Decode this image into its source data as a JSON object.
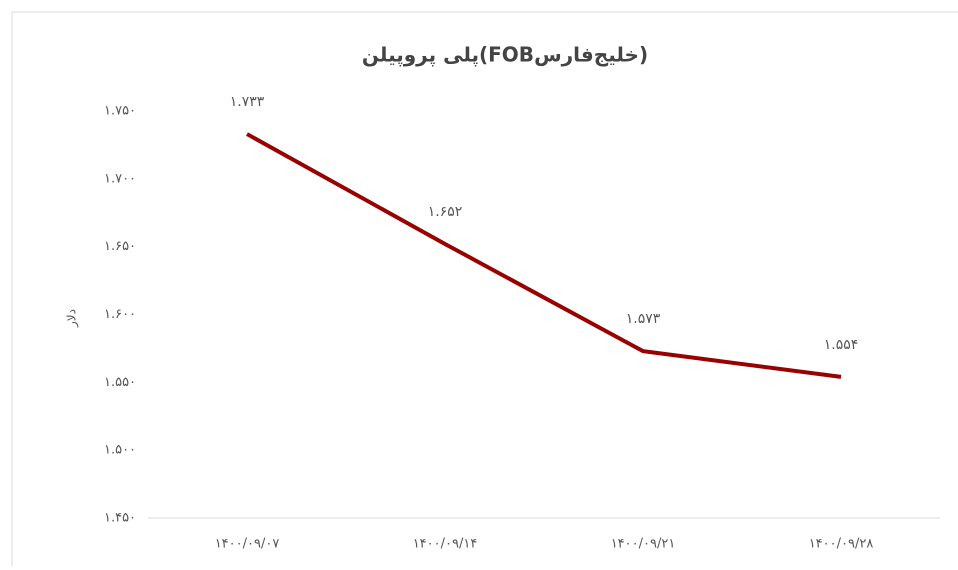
{
  "chart_data": {
    "type": "line",
    "title": "پلی پروپیلن(FOBخلیج‌فارس)",
    "y_label": "دلار",
    "categories": [
      "۱۴۰۰/۰۹/۰۷",
      "۱۴۰۰/۰۹/۱۴",
      "۱۴۰۰/۰۹/۲۱",
      "۱۴۰۰/۰۹/۲۸"
    ],
    "series": [
      {
        "name": "پلی پروپیلن",
        "color": "#990000",
        "values": [
          1733,
          1652,
          1573,
          1554
        ],
        "value_labels": [
          "۱.۷۳۳",
          "۱.۶۵۲",
          "۱.۵۷۳",
          "۱.۵۵۴"
        ]
      }
    ],
    "ylim": [
      1450,
      1750
    ],
    "yticks": [
      {
        "value": 1450,
        "label": "۱.۴۵۰"
      },
      {
        "value": 1500,
        "label": "۱.۵۰۰"
      },
      {
        "value": 1550,
        "label": "۱.۵۵۰"
      },
      {
        "value": 1600,
        "label": "۱.۶۰۰"
      },
      {
        "value": 1650,
        "label": "۱.۶۵۰"
      },
      {
        "value": 1700,
        "label": "۱.۷۰۰"
      },
      {
        "value": 1750,
        "label": "۱.۷۵۰"
      }
    ],
    "grid": false
  }
}
